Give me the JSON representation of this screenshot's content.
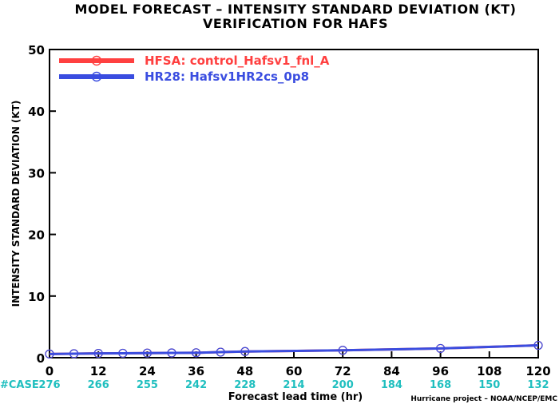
{
  "title_line1": "MODEL FORECAST – INTENSITY STANDARD DEVIATION (KT)",
  "title_line2": "VERIFICATION FOR HAFS",
  "credit": "Hurricane project – NOAA/NCEP/EMC",
  "case_label": "#CASE",
  "case_color": "#1fbfbf",
  "case_counts": [
    {
      "x": 0,
      "n": "276"
    },
    {
      "x": 12,
      "n": "266"
    },
    {
      "x": 24,
      "n": "255"
    },
    {
      "x": 36,
      "n": "242"
    },
    {
      "x": 48,
      "n": "228"
    },
    {
      "x": 60,
      "n": "214"
    },
    {
      "x": 72,
      "n": "200"
    },
    {
      "x": 84,
      "n": "184"
    },
    {
      "x": 96,
      "n": "168"
    },
    {
      "x": 108,
      "n": "150"
    },
    {
      "x": 120,
      "n": "132"
    }
  ],
  "chart_data": {
    "type": "line",
    "title": "MODEL FORECAST – INTENSITY STANDARD DEVIATION (KT)",
    "subtitle": "VERIFICATION FOR HAFS",
    "xlabel": "Forecast lead time (hr)",
    "ylabel": "INTENSITY STANDARD DEVIATION (KT)",
    "xlim": [
      0,
      120
    ],
    "ylim": [
      0,
      50
    ],
    "xticks": [
      0,
      12,
      24,
      36,
      48,
      60,
      72,
      84,
      96,
      108,
      120
    ],
    "yticks": [
      0,
      10,
      20,
      30,
      40,
      50
    ],
    "legend_position": "top-left",
    "grid": false,
    "series": [
      {
        "name": "HFSA: control_Hafsv1_fnl_A",
        "color": "#ff4040",
        "x": [
          0,
          6,
          12,
          18,
          24,
          30,
          36,
          42,
          48,
          72,
          96,
          120
        ],
        "y": [
          0.6,
          0.65,
          0.7,
          0.72,
          0.75,
          0.78,
          0.8,
          0.9,
          1.0,
          1.2,
          1.5,
          2.0
        ]
      },
      {
        "name": "HR28: Hafsv1HR2cs_0p8",
        "color": "#3a4de0",
        "x": [
          0,
          6,
          12,
          18,
          24,
          30,
          36,
          42,
          48,
          72,
          96,
          120
        ],
        "y": [
          0.6,
          0.65,
          0.7,
          0.72,
          0.75,
          0.78,
          0.8,
          0.9,
          1.0,
          1.2,
          1.5,
          2.0
        ]
      }
    ]
  }
}
